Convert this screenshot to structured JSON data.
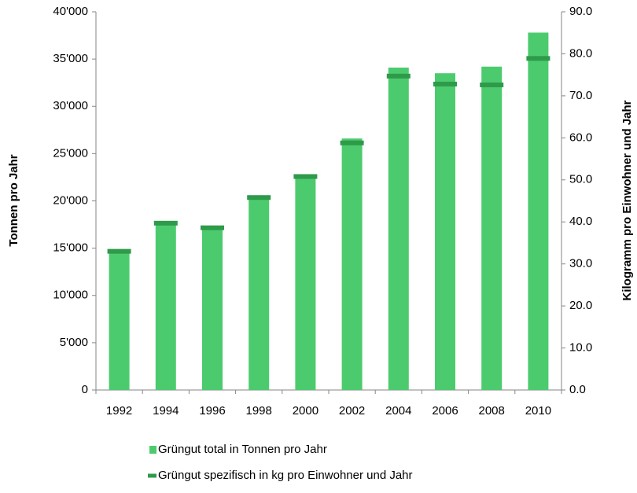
{
  "chart_data": {
    "type": "bar_marker",
    "categories": [
      "1992",
      "1994",
      "1996",
      "1998",
      "2000",
      "2002",
      "2004",
      "2006",
      "2008",
      "2010"
    ],
    "series": [
      {
        "name": "Grüngut total in Tonnen pro Jahr",
        "color": "#4ccb6e",
        "values": [
          14800,
          17700,
          17200,
          20500,
          22800,
          26600,
          34100,
          33500,
          34200,
          37800
        ]
      },
      {
        "name": "Grüngut spezifisch in kg pro Einwohner und Jahr",
        "color": "#2e9a4a",
        "axis": "y2",
        "values": [
          33.0,
          39.7,
          38.6,
          45.8,
          50.8,
          58.8,
          74.7,
          72.8,
          72.6,
          78.9
        ]
      }
    ],
    "ylabel": "Tonnen pro Jahr",
    "y2label": "Kilogramm pro Einwohner und Jahr",
    "ylim": [
      0,
      40000
    ],
    "yticks": [
      {
        "value": 0,
        "label": "0"
      },
      {
        "value": 5000,
        "label": "5'000"
      },
      {
        "value": 10000,
        "label": "10'000"
      },
      {
        "value": 15000,
        "label": "15'000"
      },
      {
        "value": 20000,
        "label": "20'000"
      },
      {
        "value": 25000,
        "label": "25'000"
      },
      {
        "value": 30000,
        "label": "30'000"
      },
      {
        "value": 35000,
        "label": "35'000"
      },
      {
        "value": 40000,
        "label": "40'000"
      }
    ],
    "y2lim": [
      0,
      90
    ],
    "y2ticks": [
      {
        "value": 0,
        "label": "0.0"
      },
      {
        "value": 10,
        "label": "10.0"
      },
      {
        "value": 20,
        "label": "20.0"
      },
      {
        "value": 30,
        "label": "30.0"
      },
      {
        "value": 40,
        "label": "40.0"
      },
      {
        "value": 50,
        "label": "50.0"
      },
      {
        "value": 60,
        "label": "60.0"
      },
      {
        "value": 70,
        "label": "70.0"
      },
      {
        "value": 80,
        "label": "80.0"
      },
      {
        "value": 90,
        "label": "90.0"
      }
    ],
    "grid": false
  }
}
